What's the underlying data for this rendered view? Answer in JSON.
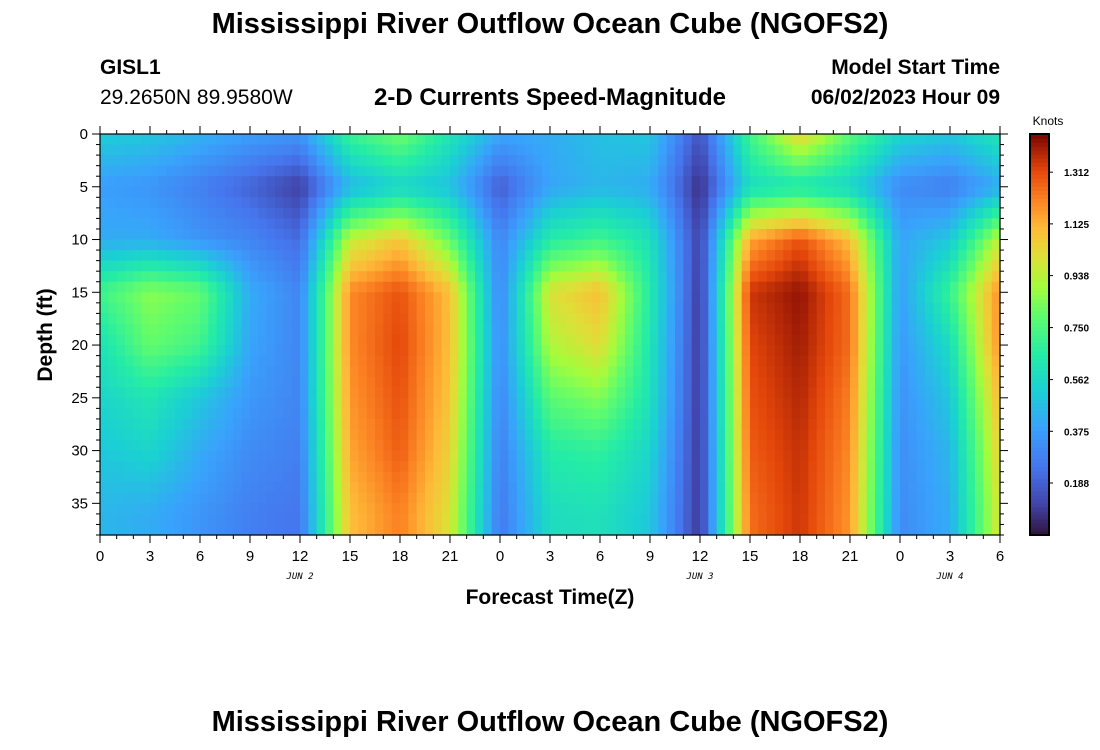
{
  "header": {
    "title": "Mississippi River Outflow Ocean Cube (NGOFS2)",
    "station_id": "GISL1",
    "station_coords": "29.2650N  89.9580W",
    "subtitle": "2-D Currents Speed-Magnitude",
    "model_start_label": "Model Start Time",
    "model_start_time": "06/02/2023 Hour 09"
  },
  "footer": {
    "title": "Mississippi River Outflow Ocean Cube (NGOFS2)"
  },
  "chart_data": {
    "type": "heatmap",
    "title": "2-D Currents Speed-Magnitude",
    "xlabel": "Forecast Time(Z)",
    "ylabel": "Depth (ft)",
    "colorbar_label": "Knots",
    "xlim": [
      0,
      54
    ],
    "ylim": [
      0,
      38
    ],
    "y_inverted": true,
    "x_ticks": [
      0,
      3,
      6,
      9,
      12,
      15,
      18,
      21,
      24,
      27,
      30,
      33,
      36,
      39,
      42,
      45,
      48,
      51,
      54
    ],
    "x_tick_labels": [
      "0",
      "3",
      "6",
      "9",
      "12",
      "15",
      "18",
      "21",
      "0",
      "3",
      "6",
      "9",
      "12",
      "15",
      "18",
      "21",
      "0",
      "3",
      "6"
    ],
    "y_ticks": [
      0,
      5,
      10,
      15,
      20,
      25,
      30,
      35
    ],
    "y_tick_labels": [
      "0",
      "5",
      "10",
      "15",
      "20",
      "25",
      "30",
      "35"
    ],
    "day_labels": [
      {
        "x": 12,
        "text": "JUN 2"
      },
      {
        "x": 36,
        "text": "JUN 3"
      },
      {
        "x": 51,
        "text": "JUN 4"
      }
    ],
    "colorbar": {
      "range": [
        0.0,
        1.45
      ],
      "ticks": [
        1.312,
        1.125,
        0.938,
        0.75,
        0.562,
        0.375,
        0.188
      ],
      "tick_labels": [
        "1.312",
        "1.125",
        "0.938",
        "0.750",
        "0.562",
        "0.375",
        "0.188"
      ],
      "colormap": "turbo"
    },
    "series": [
      {
        "depths": [
          0,
          5,
          10,
          15,
          20,
          25,
          30,
          36
        ],
        "times": [
          0,
          3,
          6,
          9,
          12,
          15,
          18,
          21,
          24,
          27,
          30,
          33,
          36,
          39,
          42,
          45,
          48,
          51,
          54
        ],
        "values": [
          [
            0.52,
            0.5,
            0.44,
            0.38,
            0.35,
            0.7,
            0.82,
            0.62,
            0.4,
            0.42,
            0.48,
            0.5,
            0.15,
            0.72,
            1.05,
            0.78,
            0.55,
            0.5,
            0.62
          ],
          [
            0.38,
            0.35,
            0.28,
            0.2,
            0.1,
            0.45,
            0.55,
            0.48,
            0.18,
            0.4,
            0.45,
            0.42,
            0.06,
            0.58,
            0.62,
            0.55,
            0.32,
            0.28,
            0.42
          ],
          [
            0.42,
            0.42,
            0.35,
            0.3,
            0.22,
            0.95,
            1.08,
            0.8,
            0.3,
            0.65,
            0.72,
            0.6,
            0.1,
            1.15,
            1.3,
            1.1,
            0.4,
            0.5,
            0.95
          ],
          [
            0.72,
            0.86,
            0.8,
            0.42,
            0.3,
            1.2,
            1.3,
            1.1,
            0.3,
            1.0,
            1.1,
            0.65,
            0.08,
            1.35,
            1.42,
            1.25,
            0.38,
            0.7,
            1.2
          ],
          [
            0.6,
            0.8,
            0.72,
            0.4,
            0.3,
            1.2,
            1.32,
            1.1,
            0.32,
            0.92,
            1.02,
            0.62,
            0.08,
            1.32,
            1.4,
            1.25,
            0.36,
            0.58,
            1.2
          ],
          [
            0.55,
            0.62,
            0.5,
            0.36,
            0.3,
            1.18,
            1.3,
            1.08,
            0.3,
            0.78,
            0.85,
            0.6,
            0.08,
            1.3,
            1.38,
            1.22,
            0.34,
            0.5,
            1.12
          ],
          [
            0.5,
            0.55,
            0.42,
            0.32,
            0.28,
            1.15,
            1.28,
            1.05,
            0.28,
            0.65,
            0.68,
            0.55,
            0.08,
            1.28,
            1.36,
            1.2,
            0.33,
            0.45,
            1.05
          ],
          [
            0.45,
            0.42,
            0.35,
            0.28,
            0.25,
            1.1,
            1.22,
            1.0,
            0.26,
            0.58,
            0.6,
            0.5,
            0.08,
            1.25,
            1.35,
            1.18,
            0.32,
            0.42,
            1.0
          ]
        ]
      }
    ]
  }
}
